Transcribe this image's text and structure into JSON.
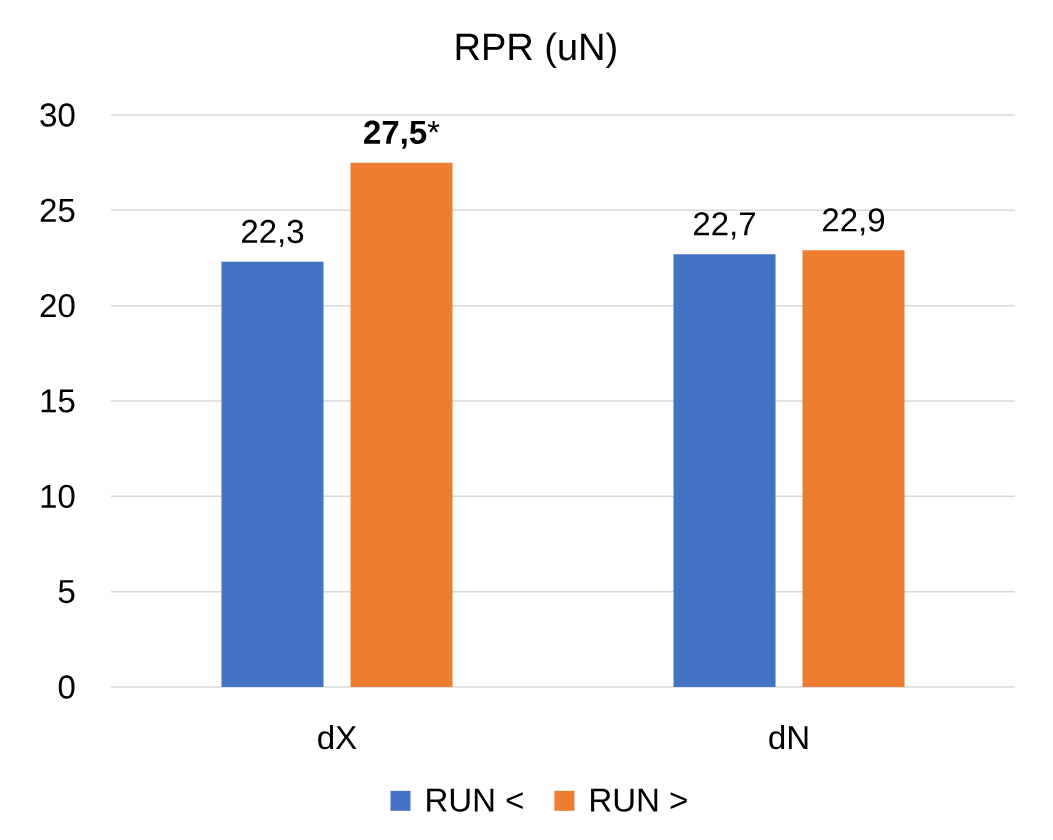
{
  "chart_data": {
    "type": "bar",
    "title": "RPR (uN)",
    "categories": [
      "dX",
      "dN"
    ],
    "series": [
      {
        "name": "RUN <",
        "color": "#4472c4",
        "values": [
          22.3,
          22.7
        ],
        "value_labels": [
          "22,3",
          "22,7"
        ]
      },
      {
        "name": "RUN >",
        "color": "#ed7d31",
        "values": [
          27.5,
          22.9
        ],
        "value_labels": [
          "**27,5***",
          "22,9"
        ]
      }
    ],
    "ylim": [
      0,
      30
    ],
    "yticks": [
      0,
      5,
      10,
      15,
      20,
      25,
      30
    ],
    "grid": "y",
    "legend": "bottom"
  }
}
